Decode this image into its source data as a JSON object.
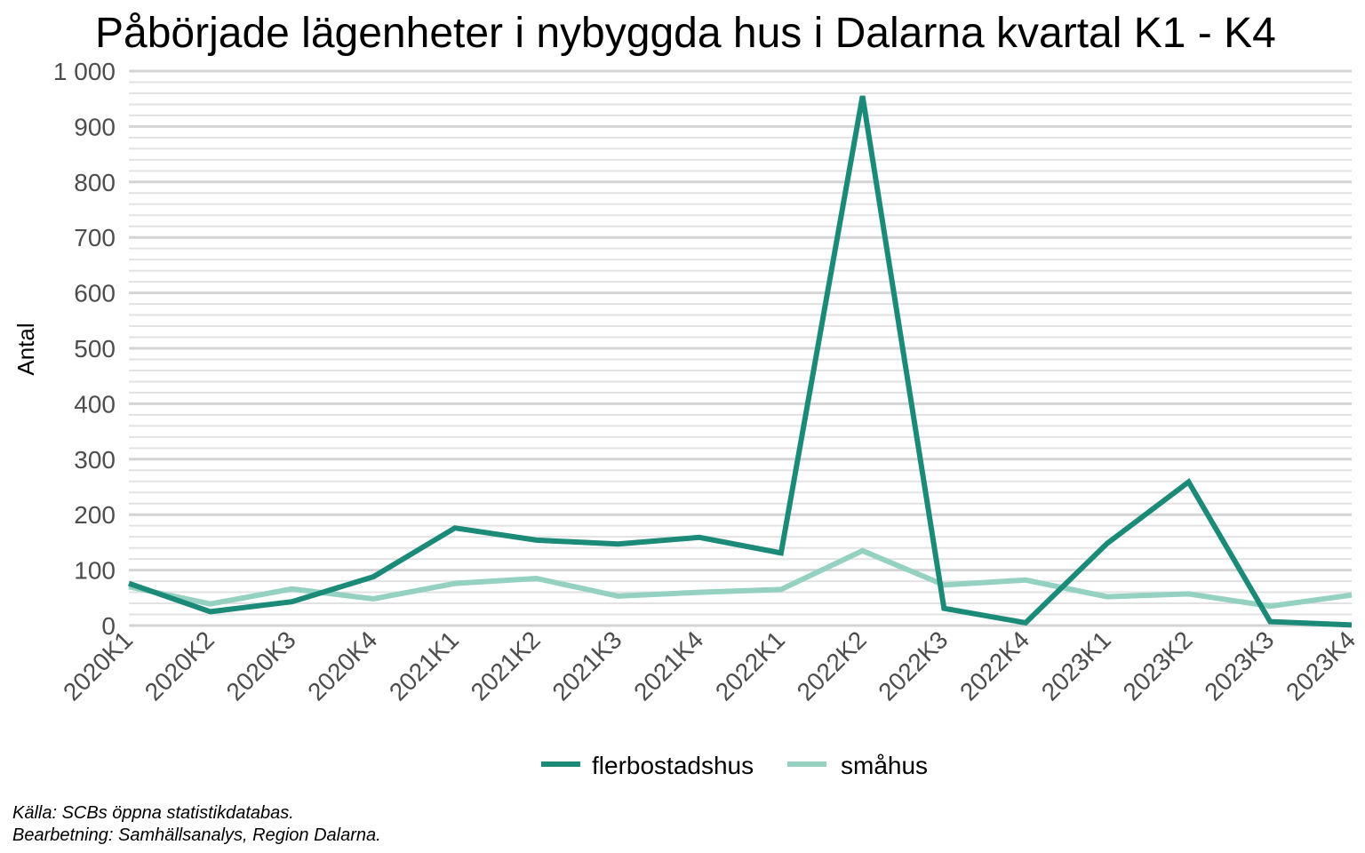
{
  "chart_data": {
    "type": "line",
    "title": "Påbörjade lägenheter i nybyggda hus i Dalarna kvartal K1 - K4",
    "xlabel": "",
    "ylabel": "Antal",
    "categories": [
      "2020K1",
      "2020K2",
      "2020K3",
      "2020K4",
      "2021K1",
      "2021K2",
      "2021K3",
      "2021K4",
      "2022K1",
      "2022K2",
      "2022K3",
      "2022K4",
      "2023K1",
      "2023K2",
      "2023K3",
      "2023K4"
    ],
    "series": [
      {
        "name": "flerbostadshus",
        "color": "#1b8a78",
        "values": [
          76,
          25,
          43,
          88,
          176,
          154,
          147,
          159,
          131,
          955,
          31,
          5,
          148,
          259,
          7,
          1
        ]
      },
      {
        "name": "småhus",
        "color": "#94d1c1",
        "values": [
          70,
          39,
          66,
          48,
          76,
          85,
          53,
          60,
          65,
          135,
          73,
          82,
          52,
          57,
          35,
          55
        ]
      }
    ],
    "ylim": [
      0,
      1000
    ],
    "yticks": [
      0,
      100,
      200,
      300,
      400,
      500,
      600,
      700,
      800,
      900,
      1000
    ],
    "ytick_labels": [
      "0",
      "100",
      "200",
      "300",
      "400",
      "500",
      "600",
      "700",
      "800",
      "900",
      "1 000"
    ],
    "grid": true,
    "legend_position": "bottom",
    "caption": [
      "Källa: SCBs öppna statistikdatabas.",
      "Bearbetning: Samhällsanalys, Region Dalarna."
    ]
  }
}
